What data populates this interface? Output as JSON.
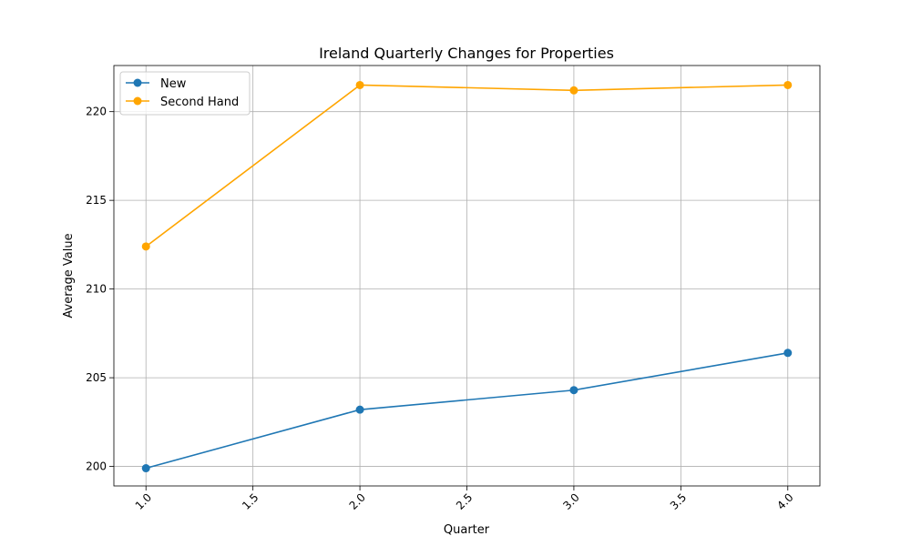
{
  "chart_data": {
    "type": "line",
    "title": "Ireland Quarterly Changes for Properties",
    "xlabel": "Quarter",
    "ylabel": "Average Value",
    "xlim": [
      0.85,
      4.15
    ],
    "ylim": [
      198.9,
      222.6
    ],
    "xticks": [
      1.0,
      1.5,
      2.0,
      2.5,
      3.0,
      3.5,
      4.0
    ],
    "xtick_labels": [
      "1.0",
      "1.5",
      "2.0",
      "2.5",
      "3.0",
      "3.5",
      "4.0"
    ],
    "yticks": [
      200,
      205,
      210,
      215,
      220
    ],
    "ytick_labels": [
      "200",
      "205",
      "210",
      "215",
      "220"
    ],
    "grid": true,
    "legend": "top-left",
    "x": [
      1,
      2,
      3,
      4
    ],
    "series": [
      {
        "name": "New",
        "values": [
          199.9,
          203.2,
          204.3,
          206.4
        ],
        "color": "#1f77b4"
      },
      {
        "name": "Second Hand",
        "values": [
          212.4,
          221.5,
          221.2,
          221.5
        ],
        "color": "#ffa500"
      }
    ]
  }
}
